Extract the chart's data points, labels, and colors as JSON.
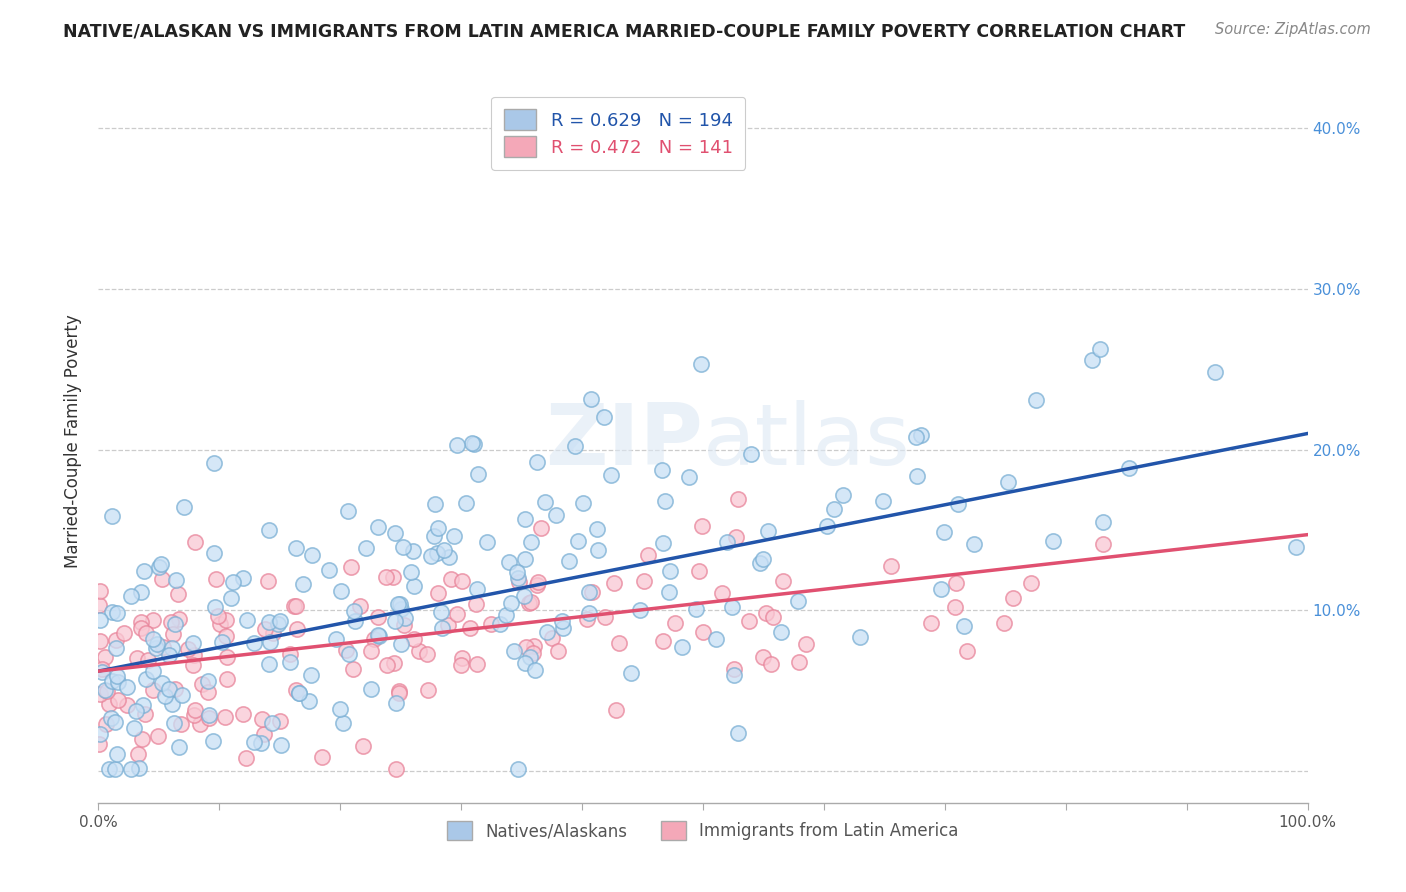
{
  "title": "NATIVE/ALASKAN VS IMMIGRANTS FROM LATIN AMERICA MARRIED-COUPLE FAMILY POVERTY CORRELATION CHART",
  "source": "Source: ZipAtlas.com",
  "ylabel": "Married-Couple Family Poverty",
  "xlim": [
    0,
    1.0
  ],
  "ylim": [
    -0.02,
    0.43
  ],
  "xticks": [
    0.0,
    0.1,
    0.2,
    0.3,
    0.4,
    0.5,
    0.6,
    0.7,
    0.8,
    0.9,
    1.0
  ],
  "xticklabels": [
    "0.0%",
    "",
    "",
    "",
    "",
    "",
    "",
    "",
    "",
    "",
    "100.0%"
  ],
  "yticks": [
    0.0,
    0.1,
    0.2,
    0.3,
    0.4
  ],
  "yticklabels": [
    "",
    "10.0%",
    "20.0%",
    "30.0%",
    "40.0%"
  ],
  "legend_top": [
    {
      "label": "R = 0.629   N = 194",
      "face": "#aac8e8",
      "edge": "#aac8e8"
    },
    {
      "label": "R = 0.472   N = 141",
      "face": "#f4a8b8",
      "edge": "#f4a8b8"
    }
  ],
  "legend_bottom": [
    {
      "label": "Natives/Alaskans",
      "face": "#aac8e8",
      "edge": "#aac8e8"
    },
    {
      "label": "Immigrants from Latin America",
      "face": "#f4a8b8",
      "edge": "#f4a8b8"
    }
  ],
  "blue_face": "#c8dff5",
  "blue_edge": "#7aafd4",
  "pink_face": "#f9c8d4",
  "pink_edge": "#e8849a",
  "blue_line_color": "#2255aa",
  "pink_line_color": "#e05070",
  "ytick_color": "#4a90d9",
  "xtick_color": "#555555",
  "background_color": "#ffffff",
  "grid_color": "#cccccc",
  "seed": 42,
  "blue_N": 194,
  "pink_N": 141,
  "blue_intercept": 0.062,
  "blue_slope": 0.148,
  "pink_intercept": 0.062,
  "pink_slope": 0.085
}
